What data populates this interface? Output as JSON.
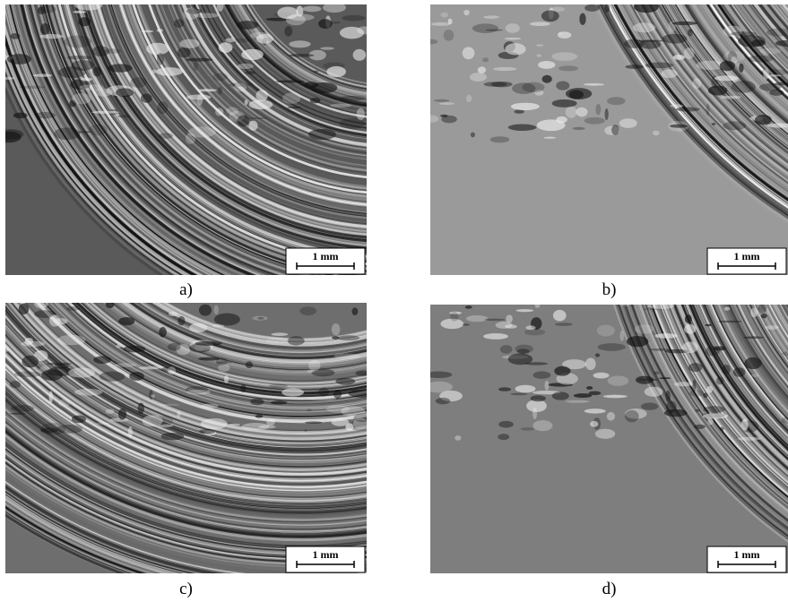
{
  "panels": [
    {
      "label": "a)",
      "scale": "1 mm"
    },
    {
      "label": "b)",
      "scale": "1 mm"
    },
    {
      "label": "c)",
      "scale": "1 mm"
    },
    {
      "label": "d)",
      "scale": "1 mm"
    }
  ]
}
